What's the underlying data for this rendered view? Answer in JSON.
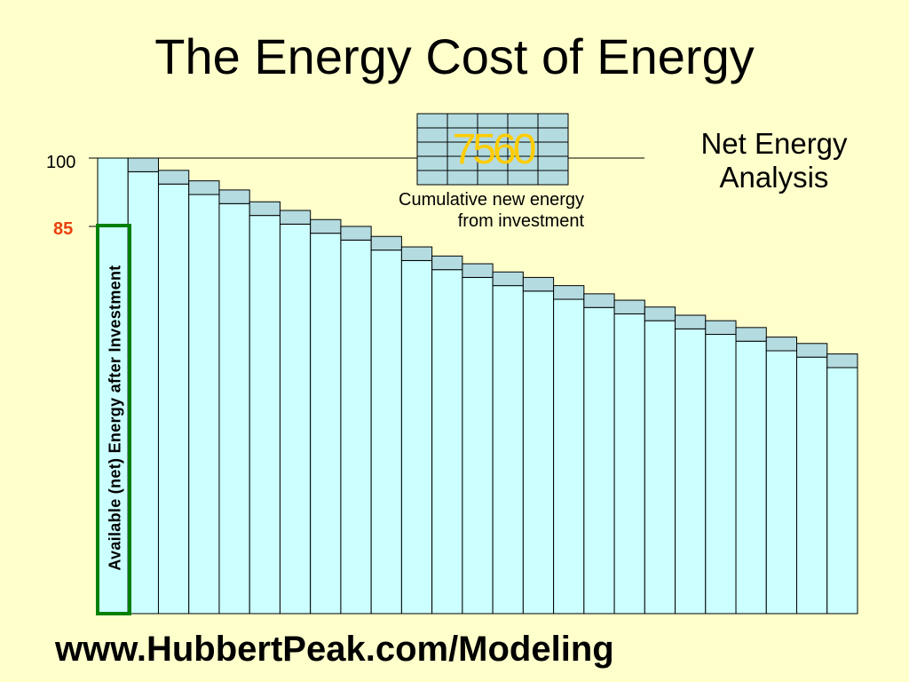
{
  "slide": {
    "title": "The Energy Cost of Energy",
    "side_title": "Net Energy Analysis",
    "footer": "www.HubbertPeak.com/Modeling"
  },
  "colors": {
    "background": "#ffffcc",
    "bar_fill": "#ccffff",
    "investment_fill": "#b3dbe0",
    "bar_stroke": "#000000",
    "net_box_stroke": "#008000",
    "label_85": "#e8400c",
    "grid_label": "#ffcc00"
  },
  "chart_data": {
    "type": "bar",
    "title": "",
    "xlabel": "",
    "ylabel": "",
    "y_ticks": [
      "100",
      "85"
    ],
    "ylim": [
      0,
      100
    ],
    "gross_energy": 100,
    "available_label": "Available (net) Energy after Investment",
    "series": [
      {
        "name": "",
        "values": [
          100,
          97,
          94.3,
          92,
          90,
          87.4,
          85.5,
          83.5,
          82,
          79.8,
          77.5,
          75.5,
          73.8,
          72,
          70.8,
          69,
          67.2,
          65.8,
          64.3,
          62.5,
          61.3,
          59.8,
          57.7,
          56.3,
          54
        ]
      },
      {
        "name": "",
        "values": [
          0,
          3,
          3,
          3,
          3,
          3,
          3,
          3,
          3,
          3,
          3,
          3,
          3,
          3,
          3,
          3,
          3,
          3,
          3,
          3,
          3,
          3,
          3,
          3,
          3
        ]
      }
    ],
    "grid_value_overlap": [
      "75",
      "60"
    ],
    "grid_caption": "Cumulative new energy from investment"
  }
}
